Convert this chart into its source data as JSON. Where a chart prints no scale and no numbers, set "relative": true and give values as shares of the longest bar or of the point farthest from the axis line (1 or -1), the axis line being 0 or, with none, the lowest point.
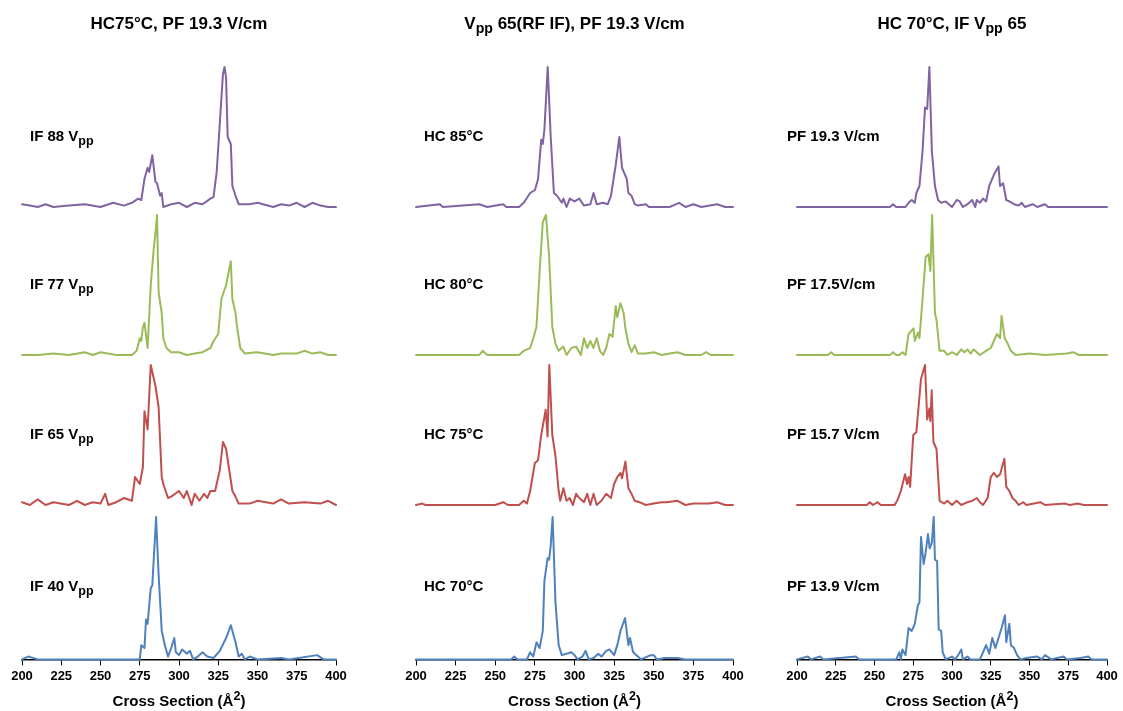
{
  "chart_data": [
    {
      "type": "line",
      "title": "HC75°C,  PF 19.3 V/cm",
      "relative": true,
      "xlim": [
        200,
        400
      ],
      "xticks": [
        200,
        225,
        250,
        275,
        300,
        325,
        350,
        375,
        400
      ],
      "tick_labels": false,
      "legend": false,
      "marker": "none",
      "series": [
        {
          "name": "IF 88 V$_{pp}$",
          "color": "#8064a2",
          "x": [
            200,
            205,
            210,
            215,
            220,
            230,
            240,
            250,
            258,
            265,
            270,
            274,
            276,
            278,
            280,
            281,
            283,
            285,
            286,
            288,
            289,
            290,
            295,
            300,
            305,
            310,
            315,
            320,
            322,
            324,
            326,
            328,
            329,
            330,
            331,
            333,
            334,
            336,
            338,
            345,
            350,
            360,
            365,
            370,
            375,
            380,
            385,
            390,
            395,
            400
          ],
          "values": [
            0.02,
            0.01,
            0,
            0.02,
            0,
            0.01,
            0.02,
            0,
            0.03,
            0.01,
            0.03,
            0.06,
            0.05,
            0.2,
            0.28,
            0.25,
            0.37,
            0.18,
            0.17,
            0.08,
            0.1,
            0,
            0.02,
            0.03,
            0,
            0.03,
            0.02,
            0.06,
            0.07,
            0.25,
            0.6,
            0.95,
            1,
            0.92,
            0.5,
            0.45,
            0.15,
            0.08,
            0.02,
            0.02,
            0.03,
            0,
            0.02,
            0.01,
            0.03,
            0,
            0.03,
            0.01,
            0,
            0
          ]
        }
      ]
    },
    {
      "type": "line",
      "title": "V$_{pp}$ 65(RF IF), PF 19.3 V/cm",
      "relative": true,
      "xlim": [
        200,
        400
      ],
      "xticks": [
        200,
        225,
        250,
        275,
        300,
        325,
        350,
        375,
        400
      ],
      "tick_labels": false,
      "legend": false,
      "marker": "none",
      "series": [
        {
          "name": "HC 85°C",
          "color": "#8064a2",
          "x": [
            200,
            215,
            217,
            240,
            245,
            255,
            257,
            265,
            268,
            272,
            275,
            277,
            279,
            280,
            281,
            283.1,
            285,
            287,
            289,
            292,
            293,
            295,
            297,
            300,
            303,
            306,
            310,
            312,
            314,
            318,
            321,
            323,
            326,
            328.3,
            330,
            333,
            334,
            336,
            338,
            340,
            345,
            347,
            360,
            362,
            366,
            370,
            375,
            380,
            390,
            395,
            400
          ],
          "values": [
            0,
            0.02,
            0,
            0.02,
            0,
            0.02,
            0,
            0,
            0.03,
            0.1,
            0.12,
            0.2,
            0.48,
            0.45,
            0.55,
            1,
            0.5,
            0.1,
            0.08,
            0.03,
            0.06,
            0,
            0.06,
            0.04,
            0.06,
            0.01,
            0.02,
            0.1,
            0.02,
            0.03,
            0.02,
            0.08,
            0.3,
            0.5,
            0.28,
            0.2,
            0.1,
            0.08,
            0.02,
            0.01,
            0.02,
            0,
            0,
            0.01,
            0.03,
            0,
            0.02,
            0,
            0.02,
            0,
            0
          ]
        }
      ]
    },
    {
      "type": "line",
      "title": "HC 70°C, IF V$_{pp}$ 65",
      "relative": true,
      "xlim": [
        200,
        400
      ],
      "xticks": [
        200,
        225,
        250,
        275,
        300,
        325,
        350,
        375,
        400
      ],
      "tick_labels": false,
      "legend": false,
      "marker": "none",
      "series": [
        {
          "name": "PF 19.3 V/cm",
          "color": "#8064a2",
          "x": [
            200,
            260,
            262,
            264,
            270,
            272,
            274,
            276,
            277,
            279,
            281,
            282.6,
            284,
            285.4,
            287,
            289,
            291,
            293,
            296,
            298,
            300,
            303,
            305,
            307,
            310,
            313,
            315,
            316,
            318,
            320,
            322,
            324,
            327,
            330,
            331,
            333,
            335,
            337,
            340,
            343,
            345,
            347,
            352,
            355,
            360,
            362,
            400
          ],
          "values": [
            0,
            0,
            0.02,
            0,
            0,
            0.03,
            0.05,
            0.03,
            0.1,
            0.15,
            0.4,
            0.71,
            0.7,
            1,
            0.4,
            0.15,
            0.05,
            0.03,
            0.04,
            0.02,
            0,
            0.05,
            0.04,
            0,
            0.02,
            0.05,
            0,
            0.05,
            0.03,
            0.06,
            0.04,
            0.15,
            0.23,
            0.29,
            0.15,
            0.17,
            0.05,
            0.04,
            0.02,
            0.01,
            0.03,
            0,
            0.02,
            0,
            0.02,
            0,
            0
          ]
        }
      ]
    },
    {
      "type": "line",
      "relative": true,
      "xlim": [
        200,
        400
      ],
      "xticks": [
        200,
        225,
        250,
        275,
        300,
        325,
        350,
        375,
        400
      ],
      "tick_labels": false,
      "legend": false,
      "marker": "none",
      "series": [
        {
          "name": "IF 77 V$_{pp}$",
          "color": "#9bbb59",
          "x": [
            200,
            210,
            220,
            230,
            240,
            245,
            250,
            260,
            270,
            273,
            275,
            276,
            277,
            278,
            280,
            282,
            284,
            285,
            286,
            287,
            289,
            290,
            292,
            295,
            300,
            305,
            310,
            315,
            320,
            322,
            325,
            327,
            330,
            333,
            334,
            336,
            337,
            339,
            342,
            350,
            360,
            365,
            375,
            380,
            385,
            390,
            395,
            400
          ],
          "values": [
            0,
            0,
            0.01,
            0,
            0.02,
            0,
            0.02,
            0,
            0,
            0.03,
            0.12,
            0.1,
            0.2,
            0.23,
            0.05,
            0.5,
            0.77,
            0.87,
            1,
            0.45,
            0.3,
            0.12,
            0.05,
            0.02,
            0.02,
            0,
            0.01,
            0.02,
            0.05,
            0.1,
            0.15,
            0.4,
            0.5,
            0.67,
            0.4,
            0.3,
            0.2,
            0.05,
            0.01,
            0.02,
            0,
            0.01,
            0.01,
            0.03,
            0.01,
            0.02,
            0,
            0
          ]
        }
      ]
    },
    {
      "type": "line",
      "relative": true,
      "xlim": [
        200,
        400
      ],
      "xticks": [
        200,
        225,
        250,
        275,
        300,
        325,
        350,
        375,
        400
      ],
      "tick_labels": false,
      "legend": false,
      "marker": "none",
      "series": [
        {
          "name": "HC 80°C",
          "color": "#9bbb59",
          "x": [
            200,
            240,
            242,
            245,
            265,
            268,
            272,
            274,
            276,
            278,
            280,
            282,
            284,
            286,
            288,
            290,
            293,
            295,
            298,
            301,
            304,
            306,
            308,
            310,
            312,
            314,
            316,
            318,
            320,
            322,
            324,
            326,
            327,
            329,
            331,
            332,
            334,
            336,
            338,
            340,
            345,
            350,
            355,
            360,
            365,
            370,
            380,
            383,
            386,
            400
          ],
          "values": [
            0,
            0,
            0.03,
            0,
            0,
            0.03,
            0.05,
            0.12,
            0.2,
            0.6,
            0.95,
            1,
            0.7,
            0.2,
            0.08,
            0.03,
            0.06,
            0,
            0.05,
            0.06,
            0,
            0.12,
            0.05,
            0.1,
            0.05,
            0.12,
            0.03,
            0,
            0.05,
            0.15,
            0.13,
            0.35,
            0.27,
            0.37,
            0.3,
            0.2,
            0.08,
            0.02,
            0.07,
            0.01,
            0.01,
            0.02,
            0,
            0.01,
            0.02,
            0,
            0,
            0.02,
            0,
            0
          ]
        }
      ]
    },
    {
      "type": "line",
      "relative": true,
      "xlim": [
        200,
        400
      ],
      "xticks": [
        200,
        225,
        250,
        275,
        300,
        325,
        350,
        375,
        400
      ],
      "tick_labels": false,
      "legend": false,
      "marker": "none",
      "series": [
        {
          "name": "PF 17.5V/cm",
          "color": "#9bbb59",
          "x": [
            200,
            220,
            222,
            224,
            260,
            262,
            264,
            266,
            268,
            270,
            272,
            275.2,
            276,
            278,
            279,
            281,
            283,
            284.8,
            286,
            287.2,
            289,
            290,
            292,
            295,
            297,
            300,
            303,
            306,
            308,
            310,
            312,
            314,
            316,
            318,
            322,
            325,
            327,
            329,
            331,
            332,
            334,
            336,
            338,
            341,
            350,
            360,
            374,
            378,
            382,
            400
          ],
          "values": [
            0,
            0,
            0.02,
            0,
            0,
            0.02,
            0,
            0,
            0.02,
            0,
            0.15,
            0.19,
            0.1,
            0.16,
            0.12,
            0.4,
            0.7,
            0.72,
            0.6,
            1,
            0.3,
            0.25,
            0.03,
            0.03,
            0,
            0.02,
            0,
            0.04,
            0.02,
            0.04,
            0.01,
            0.04,
            0.02,
            0,
            0.03,
            0.05,
            0.1,
            0.15,
            0.12,
            0.28,
            0.12,
            0.08,
            0.03,
            0,
            0.01,
            0,
            0.01,
            0.02,
            0,
            0
          ]
        }
      ]
    },
    {
      "type": "line",
      "relative": true,
      "xlim": [
        200,
        400
      ],
      "xticks": [
        200,
        225,
        250,
        275,
        300,
        325,
        350,
        375,
        400
      ],
      "tick_labels": false,
      "legend": false,
      "marker": "none",
      "series": [
        {
          "name": "IF 65 V$_{pp}$",
          "color": "#c0504d",
          "x": [
            200,
            205,
            210,
            215,
            220,
            230,
            235,
            240,
            245,
            250,
            253,
            255,
            260,
            265,
            270,
            272,
            275,
            277,
            278,
            280,
            282,
            285,
            287,
            289,
            290,
            293,
            295,
            300,
            303,
            305,
            308,
            310,
            313,
            316,
            318,
            320,
            323,
            326,
            328,
            330,
            332,
            334,
            336,
            338,
            345,
            350,
            360,
            365,
            370,
            380,
            390,
            395,
            400
          ],
          "values": [
            0.02,
            0,
            0.04,
            0,
            0.02,
            0,
            0.03,
            0,
            0.02,
            0.01,
            0.08,
            0,
            0.02,
            0.05,
            0.03,
            0.2,
            0.15,
            0.27,
            0.67,
            0.54,
            1,
            0.85,
            0.7,
            0.2,
            0.15,
            0.05,
            0.06,
            0.1,
            0.05,
            0.1,
            0,
            0.08,
            0.03,
            0.08,
            0.05,
            0.1,
            0.1,
            0.25,
            0.45,
            0.4,
            0.25,
            0.1,
            0.06,
            0.01,
            0.01,
            0.03,
            0.01,
            0.04,
            0.01,
            0.02,
            0.01,
            0.03,
            0
          ]
        }
      ]
    },
    {
      "type": "line",
      "relative": true,
      "xlim": [
        200,
        400
      ],
      "xticks": [
        200,
        225,
        250,
        275,
        300,
        325,
        350,
        375,
        400
      ],
      "tick_labels": false,
      "legend": false,
      "marker": "none",
      "series": [
        {
          "name": "HC 75°C",
          "color": "#c0504d",
          "x": [
            200,
            204,
            206,
            250,
            255,
            258,
            265,
            268,
            270,
            272,
            275,
            277,
            279,
            281.8,
            283,
            284.1,
            286,
            288,
            290,
            291,
            293,
            295,
            297,
            299,
            301,
            303,
            306,
            308,
            310,
            312,
            314,
            317,
            320,
            323,
            325,
            327,
            329,
            330,
            332.1,
            334,
            336,
            338,
            341,
            345,
            350,
            355,
            358,
            365,
            370,
            375,
            385,
            390,
            395,
            400
          ],
          "values": [
            0,
            0.01,
            0,
            0,
            0.02,
            0,
            0,
            0.03,
            0.01,
            0.1,
            0.3,
            0.32,
            0.5,
            0.68,
            0.49,
            1,
            0.5,
            0.35,
            0.1,
            0.03,
            0.12,
            0.03,
            0.05,
            0,
            0.08,
            0.05,
            0.02,
            0.08,
            0,
            0.08,
            0,
            0.03,
            0.08,
            0.05,
            0.15,
            0.2,
            0.23,
            0.19,
            0.31,
            0.12,
            0.08,
            0.03,
            0.02,
            0,
            0.01,
            0.02,
            0.02,
            0.03,
            0,
            0.01,
            0.01,
            0.02,
            0,
            0
          ]
        }
      ]
    },
    {
      "type": "line",
      "relative": true,
      "xlim": [
        200,
        400
      ],
      "xticks": [
        200,
        225,
        250,
        275,
        300,
        325,
        350,
        375,
        400
      ],
      "tick_labels": false,
      "legend": false,
      "marker": "none",
      "series": [
        {
          "name": "PF 15.7 V/cm",
          "color": "#c0504d",
          "x": [
            200,
            245,
            247,
            249,
            252,
            254,
            263,
            265,
            267,
            269.7,
            271,
            272,
            273,
            275,
            277,
            280,
            282.6,
            284,
            285.4,
            286,
            286.9,
            288,
            290,
            292,
            295,
            297,
            300,
            303,
            306,
            310,
            313,
            316,
            318,
            320,
            323,
            325,
            327,
            329,
            331,
            333.8,
            335,
            337,
            339,
            341,
            343,
            346,
            348,
            357,
            360,
            373,
            376,
            381,
            385,
            400
          ],
          "values": [
            0,
            0,
            0.02,
            0,
            0.02,
            0,
            0,
            0.04,
            0.1,
            0.22,
            0.15,
            0.2,
            0.13,
            0.5,
            0.52,
            0.9,
            1,
            0.61,
            0.69,
            0.6,
            0.82,
            0.45,
            0.4,
            0.03,
            0.01,
            0.03,
            0,
            0.03,
            0,
            0.02,
            0.03,
            0.05,
            0.02,
            0,
            0.05,
            0.2,
            0.23,
            0.2,
            0.22,
            0.33,
            0.13,
            0.1,
            0.05,
            0.03,
            0,
            0.02,
            0,
            0.02,
            0,
            0.01,
            0,
            0.01,
            0,
            0
          ]
        }
      ]
    },
    {
      "type": "line",
      "xlabel": "Cross Section (Å$^{2}$)",
      "relative": true,
      "xlim": [
        200,
        400
      ],
      "xticks": [
        200,
        225,
        250,
        275,
        300,
        325,
        350,
        375,
        400
      ],
      "tick_labels": "x",
      "legend": false,
      "marker": "none",
      "series": [
        {
          "name": "IF 40 V$_{pp}$",
          "color": "#4f81bd",
          "x": [
            200,
            204,
            210,
            230,
            250,
            270,
            275,
            276,
            278,
            279,
            280,
            282,
            283,
            285.4,
            287,
            289,
            291,
            293,
            295,
            297,
            298,
            300,
            302,
            305,
            307,
            309,
            312,
            315,
            318,
            322,
            326,
            330,
            333,
            336,
            338,
            340,
            342,
            345,
            350,
            365,
            370,
            388,
            392,
            400
          ],
          "values": [
            0,
            0.02,
            0,
            0,
            0,
            0,
            0,
            0.1,
            0.08,
            0.28,
            0.25,
            0.5,
            0.52,
            1,
            0.6,
            0.2,
            0.1,
            0.02,
            0.08,
            0.15,
            0.05,
            0.03,
            0.07,
            0.04,
            0.06,
            0,
            0.02,
            0.05,
            0.02,
            0.01,
            0.06,
            0.15,
            0.24,
            0.12,
            0.02,
            0.04,
            0,
            0.02,
            0,
            0.01,
            0,
            0.03,
            0,
            0
          ]
        }
      ]
    },
    {
      "type": "line",
      "xlabel": "Cross Section (Å$^{2}$)",
      "relative": true,
      "xlim": [
        200,
        400
      ],
      "xticks": [
        200,
        225,
        250,
        275,
        300,
        325,
        350,
        375,
        400
      ],
      "tick_labels": "x",
      "legend": false,
      "marker": "none",
      "series": [
        {
          "name": "HC 70°C",
          "color": "#4f81bd",
          "x": [
            200,
            260,
            262,
            264,
            270,
            272,
            274,
            276,
            278,
            280,
            281,
            283,
            284,
            285,
            286.2,
            288,
            290,
            292,
            295,
            298,
            300,
            302,
            305,
            307,
            309,
            312,
            315,
            317,
            320,
            322,
            325,
            327,
            329,
            331.9,
            334,
            335,
            337,
            340,
            342,
            348,
            350,
            352,
            357,
            365,
            370,
            400
          ],
          "values": [
            0,
            0,
            0.02,
            0,
            0,
            0.05,
            0.02,
            0.12,
            0.08,
            0.2,
            0.55,
            0.71,
            0.7,
            0.8,
            1,
            0.4,
            0.1,
            0.03,
            0.04,
            0.05,
            0.03,
            0,
            0.02,
            0.06,
            0,
            0.01,
            0.04,
            0.02,
            0.06,
            0.07,
            0.03,
            0.1,
            0.2,
            0.29,
            0.1,
            0.15,
            0.05,
            0.02,
            0,
            0.03,
            0.03,
            0,
            0.01,
            0.01,
            0,
            0
          ]
        }
      ]
    },
    {
      "type": "line",
      "xlabel": "Cross Section (Å$^{2}$)",
      "relative": true,
      "xlim": [
        200,
        400
      ],
      "xticks": [
        200,
        225,
        250,
        275,
        300,
        325,
        350,
        375,
        400
      ],
      "tick_labels": "x",
      "legend": false,
      "marker": "none",
      "series": [
        {
          "name": "PF 13.9 V/cm",
          "color": "#4f81bd",
          "x": [
            200,
            207,
            209,
            215,
            217,
            238,
            240,
            264,
            266,
            267,
            268,
            270,
            272,
            274,
            276,
            278,
            279,
            280,
            281.7,
            283,
            284.5,
            285.6,
            287,
            288.2,
            289,
            290.4,
            291.4,
            293,
            294,
            296,
            300,
            302,
            304,
            306,
            307,
            310,
            312,
            318,
            320,
            322,
            324,
            326,
            328,
            330,
            332,
            334.2,
            335,
            337,
            338,
            340,
            342,
            344,
            348,
            355,
            358,
            360,
            364,
            372,
            374,
            383,
            388,
            390,
            400
          ],
          "values": [
            0,
            0.02,
            0,
            0.02,
            0,
            0.02,
            0,
            0,
            0.05,
            0,
            0.07,
            0.03,
            0.22,
            0.2,
            0.25,
            0.38,
            0.4,
            0.86,
            0.67,
            0.75,
            0.88,
            0.78,
            0.82,
            1,
            0.7,
            0.69,
            0.21,
            0.2,
            0.05,
            0,
            0.02,
            0,
            0.03,
            0.07,
            0,
            0.02,
            0,
            0,
            0.05,
            0.1,
            0.04,
            0.15,
            0.08,
            0.15,
            0.22,
            0.31,
            0.12,
            0.25,
            0.1,
            0.08,
            0.03,
            0,
            0.01,
            0.02,
            0,
            0.03,
            0,
            0.02,
            0,
            0.01,
            0.02,
            0,
            0
          ]
        }
      ]
    }
  ]
}
